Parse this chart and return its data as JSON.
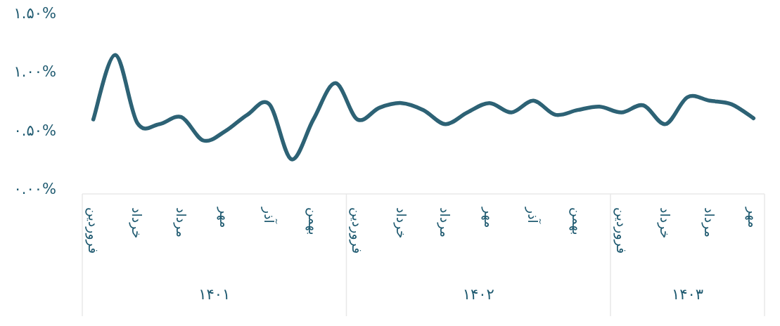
{
  "chart_data": {
    "type": "line",
    "categories": [
      "فروردین",
      null,
      "خرداد",
      null,
      "مرداد",
      null,
      "مهر",
      null,
      "آذر",
      null,
      "بهمن",
      null,
      "فروردین",
      null,
      "خرداد",
      null,
      "مرداد",
      null,
      "مهر",
      null,
      "آذر",
      null,
      "بهمن",
      null,
      "فروردین",
      null,
      "خرداد",
      null,
      "مرداد",
      null,
      "مهر"
    ],
    "series": [
      {
        "color": "#2d6275",
        "values": [
          0.6,
          1.15,
          0.57,
          0.56,
          0.62,
          0.42,
          0.5,
          0.64,
          0.73,
          0.26,
          0.6,
          0.91,
          0.6,
          0.7,
          0.74,
          0.68,
          0.56,
          0.66,
          0.74,
          0.66,
          0.76,
          0.64,
          0.68,
          0.71,
          0.66,
          0.72,
          0.56,
          0.79,
          0.76,
          0.73,
          0.61
        ]
      }
    ],
    "ylim": [
      0,
      1.5
    ],
    "yticks": [
      {
        "value": 0,
        "label": "۰.۰۰%"
      },
      {
        "value": 0.5,
        "label": "۰.۵۰%"
      },
      {
        "value": 1,
        "label": "۱.۰۰%"
      },
      {
        "value": 1.5,
        "label": "۱.۵۰%"
      }
    ],
    "annotations": [
      "۱۴۰۱",
      "۱۴۰۲",
      "۱۴۰۳"
    ],
    "grid": false,
    "marker": "none",
    "line_style": "solid"
  }
}
